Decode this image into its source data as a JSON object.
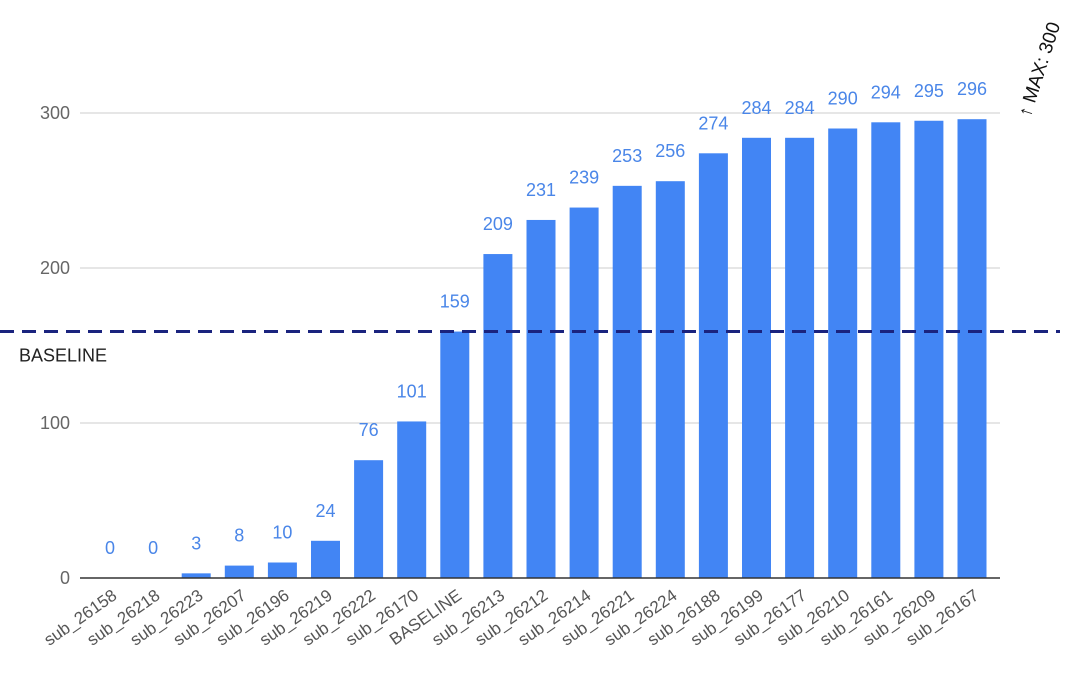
{
  "chart_data": {
    "type": "bar",
    "title": "",
    "xlabel": "",
    "ylabel": "",
    "categories": [
      "sub_26158",
      "sub_26218",
      "sub_26223",
      "sub_26207",
      "sub_26196",
      "sub_26219",
      "sub_26222",
      "sub_26170",
      "BASELINE",
      "sub_26213",
      "sub_26212",
      "sub_26214",
      "sub_26221",
      "sub_26224",
      "sub_26188",
      "sub_26199",
      "sub_26177",
      "sub_26210",
      "sub_26161",
      "sub_26209",
      "sub_26167"
    ],
    "values": [
      0,
      0,
      3,
      8,
      10,
      24,
      76,
      101,
      159,
      209,
      231,
      239,
      253,
      256,
      274,
      284,
      284,
      290,
      294,
      295,
      296
    ],
    "ylim": [
      0,
      300
    ],
    "yticks": [
      0,
      100,
      200,
      300
    ],
    "grid": true,
    "bar_color": "#4285f4",
    "label_color": "#4a86e8",
    "reference_line": {
      "label": "BASELINE",
      "value": 159,
      "color": "#1a237e",
      "style": "dashed"
    },
    "max_annotation": {
      "text": "↑ MAX: 300",
      "value": 300
    }
  }
}
